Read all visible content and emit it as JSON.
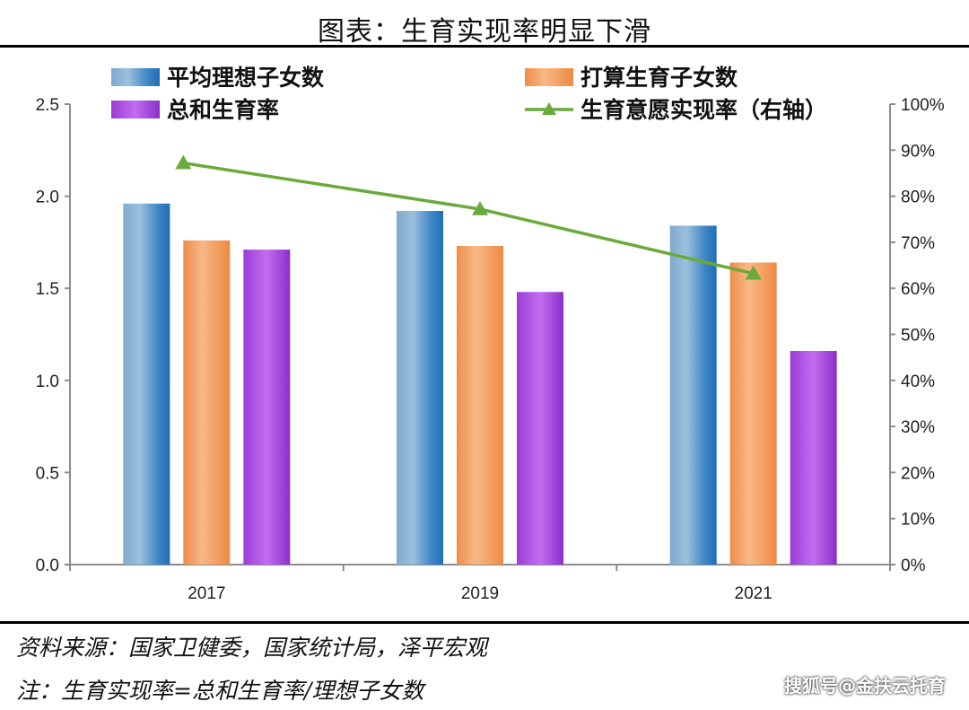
{
  "page": {
    "title": "图表：生育实现率明显下滑",
    "source": "资料来源：国家卫健委，国家统计局，泽平宏观",
    "note": "注：生育实现率=总和生育率/理想子女数",
    "watermark": "搜狐号@金扶云托育"
  },
  "chart_data": {
    "type": "bar",
    "categories": [
      "2017",
      "2019",
      "2021"
    ],
    "series": [
      {
        "name": "平均理想子女数",
        "type": "bar",
        "axis": "left",
        "values": [
          1.96,
          1.92,
          1.84
        ],
        "color": "#5b9bd5"
      },
      {
        "name": "打算生育子女数",
        "type": "bar",
        "axis": "left",
        "values": [
          1.76,
          1.73,
          1.64
        ],
        "color": "#f4a460"
      },
      {
        "name": "总和生育率",
        "type": "bar",
        "axis": "left",
        "values": [
          1.71,
          1.48,
          1.16
        ],
        "color": "#a64ad9"
      },
      {
        "name": "生育意愿实现率（右轴）",
        "type": "line",
        "axis": "right",
        "values": [
          87.2,
          77.2,
          63.2
        ],
        "color": "#6aaa3a"
      }
    ],
    "left_axis": {
      "min": 0,
      "max": 2.5,
      "ticks": [
        "0.0",
        "0.5",
        "1.0",
        "1.5",
        "2.0",
        "2.5"
      ]
    },
    "right_axis": {
      "min": 0,
      "max": 100,
      "ticks": [
        "0%",
        "10%",
        "20%",
        "30%",
        "40%",
        "50%",
        "60%",
        "70%",
        "80%",
        "90%",
        "100%"
      ]
    },
    "legend_position": "top",
    "grid": false
  }
}
